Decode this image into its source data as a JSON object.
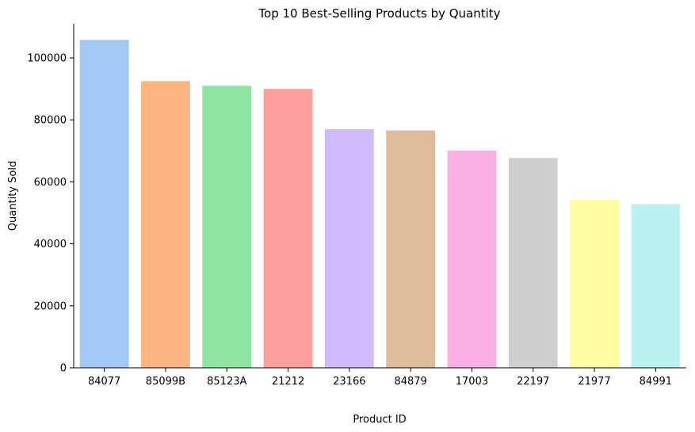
{
  "chart_data": {
    "type": "bar",
    "title": "Top 10 Best-Selling Products by Quantity",
    "xlabel": "Product ID",
    "ylabel": "Quantity Sold",
    "categories": [
      "84077",
      "85099B",
      "85123A",
      "21212",
      "23166",
      "84879",
      "17003",
      "22197",
      "21977",
      "84991"
    ],
    "values": [
      105800,
      92500,
      91000,
      90000,
      77000,
      76600,
      70100,
      67700,
      54300,
      52800
    ],
    "colors": [
      "#a1c9f4",
      "#ffb482",
      "#8de5a1",
      "#ff9f9b",
      "#d0bbff",
      "#debb9b",
      "#fab0e4",
      "#cfcfcf",
      "#fffea3",
      "#b9f2f0"
    ],
    "ylim": [
      0,
      111000
    ],
    "yticks": [
      "0",
      "20000",
      "40000",
      "60000",
      "80000",
      "100000"
    ],
    "grid": false,
    "legend": "none"
  }
}
